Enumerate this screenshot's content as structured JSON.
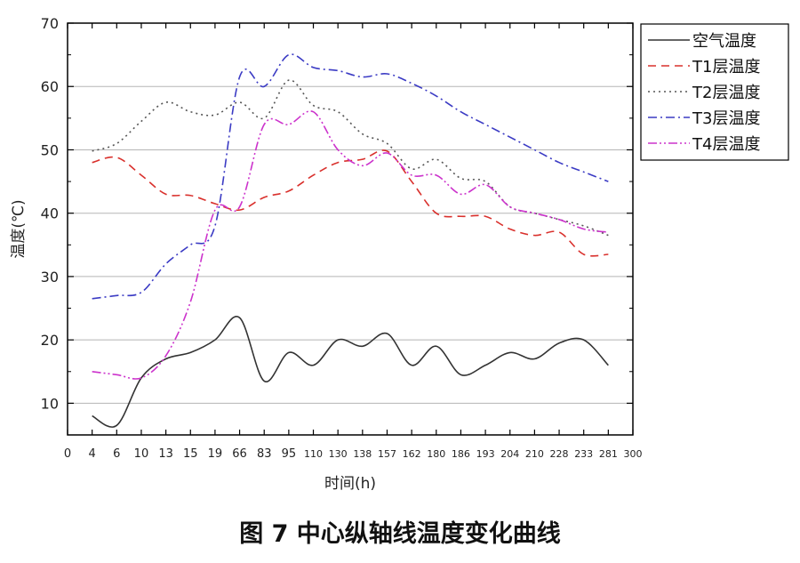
{
  "figure": {
    "caption": "图 7  中心纵轴线温度变化曲线"
  },
  "chart_data": {
    "type": "line",
    "title": "",
    "xlabel": "时间(h)",
    "ylabel": "温度(℃)",
    "ylim": [
      5,
      70
    ],
    "yticks": [
      10,
      20,
      30,
      40,
      50,
      60,
      70
    ],
    "grid": "horizontal",
    "legend_position": "top-right-outside",
    "x_tick_labels": [
      "0",
      "4",
      "6",
      "10",
      "13",
      "15",
      "19",
      "66",
      "83",
      "95",
      "110",
      "130",
      "138",
      "157",
      "162",
      "180",
      "186",
      "193",
      "204",
      "210",
      "228",
      "233",
      "281",
      "300"
    ],
    "series": [
      {
        "name": "空气温度",
        "color": "#333333",
        "dash": "solid",
        "x": [
          "4",
          "6",
          "10",
          "13",
          "15",
          "19",
          "66",
          "83",
          "95",
          "110",
          "130",
          "138",
          "157",
          "162",
          "180",
          "186",
          "193",
          "204",
          "210",
          "228",
          "233",
          "281"
        ],
        "values": [
          8,
          6.5,
          14,
          17,
          18,
          20,
          23.5,
          13.5,
          18,
          16,
          20,
          19,
          21,
          16,
          19,
          14.5,
          16,
          18,
          17,
          19.5,
          20,
          16
        ]
      },
      {
        "name": "T1层温度",
        "color": "#d9302c",
        "dash": "dashed",
        "x": [
          "4",
          "6",
          "10",
          "13",
          "15",
          "19",
          "66",
          "83",
          "95",
          "110",
          "130",
          "138",
          "157",
          "162",
          "180",
          "186",
          "193",
          "204",
          "210",
          "228",
          "233",
          "281"
        ],
        "values": [
          48,
          48.8,
          46,
          43,
          42.8,
          41.5,
          40.5,
          42.5,
          43.5,
          46,
          48,
          48.5,
          49.8,
          45,
          40,
          39.5,
          39.5,
          37.5,
          36.5,
          37,
          33.5,
          33.5
        ]
      },
      {
        "name": "T2层温度",
        "color": "#555555",
        "dash": "dotted",
        "x": [
          "4",
          "6",
          "10",
          "13",
          "15",
          "19",
          "66",
          "83",
          "95",
          "110",
          "130",
          "138",
          "157",
          "162",
          "180",
          "186",
          "193",
          "204",
          "210",
          "228",
          "233",
          "281"
        ],
        "values": [
          49.8,
          51,
          54.5,
          57.5,
          56,
          55.5,
          57.5,
          55,
          61,
          57,
          56,
          52.5,
          51,
          47,
          48.5,
          45.5,
          45,
          41,
          40,
          39,
          38,
          36.5
        ]
      },
      {
        "name": "T3层温度",
        "color": "#3b3bc4",
        "dash": "dashdot",
        "x": [
          "4",
          "6",
          "10",
          "13",
          "15",
          "19",
          "66",
          "83",
          "95",
          "110",
          "130",
          "138",
          "157",
          "162",
          "180",
          "186",
          "193",
          "204",
          "210",
          "228",
          "233",
          "281"
        ],
        "values": [
          26.5,
          27,
          27.5,
          32,
          35,
          38,
          61.5,
          60,
          65,
          63,
          62.5,
          61.5,
          62,
          60.5,
          58.5,
          56,
          54,
          52,
          50,
          48,
          46.5,
          45
        ]
      },
      {
        "name": "T4层温度",
        "color": "#cc33cc",
        "dash": "dashdotdot",
        "x": [
          "4",
          "6",
          "10",
          "13",
          "15",
          "19",
          "66",
          "83",
          "95",
          "110",
          "130",
          "138",
          "157",
          "162",
          "180",
          "186",
          "193",
          "204",
          "210",
          "228",
          "233",
          "281"
        ],
        "values": [
          15,
          14.5,
          14,
          17.5,
          26,
          40.5,
          41,
          54,
          54,
          56,
          50,
          47.5,
          49.5,
          46,
          46,
          43,
          44.5,
          41,
          40,
          39,
          37.5,
          37
        ]
      }
    ]
  }
}
